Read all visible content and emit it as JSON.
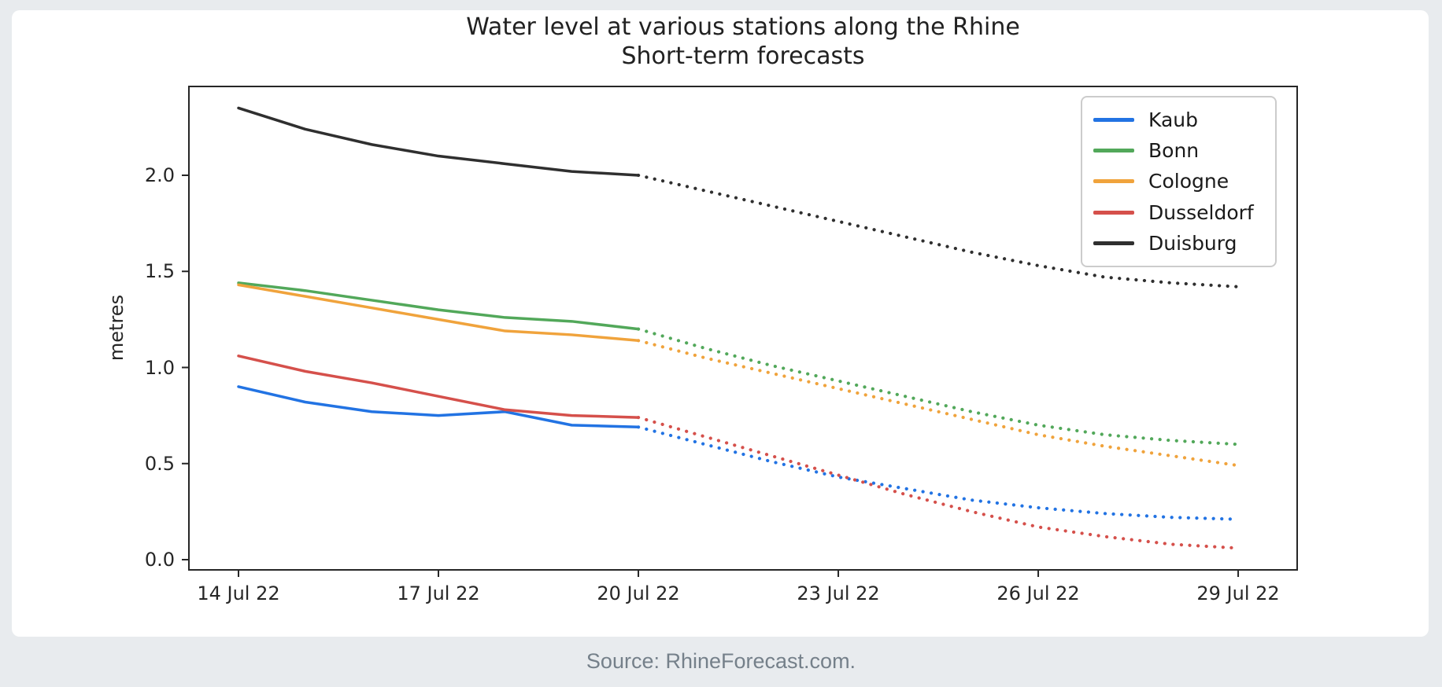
{
  "page": {
    "background": "#e8ebee",
    "card_background": "#ffffff"
  },
  "source_note": "Source: RhineForecast.com.",
  "chart_data": {
    "type": "line",
    "title": "Water level at various stations along the Rhine",
    "subtitle": "Short-term forecasts",
    "xlabel": "",
    "ylabel": "metres",
    "x_tick_labels": [
      "14 Jul 22",
      "17 Jul 22",
      "20 Jul 22",
      "23 Jul 22",
      "26 Jul 22",
      "29 Jul 22"
    ],
    "x_tick_days": [
      14,
      17,
      20,
      23,
      26,
      29
    ],
    "y_tick_labels": [
      "0.0",
      "0.5",
      "1.0",
      "1.5",
      "2.0"
    ],
    "y_ticks": [
      0,
      0.5,
      1,
      1.5,
      2
    ],
    "ylim": [
      -0.05,
      2.47
    ],
    "xlim_days": [
      13.25,
      29.9
    ],
    "grid": false,
    "legend_position": "upper right",
    "axis_color": "#262626",
    "observed_style": "solid",
    "forecast_style": "dotted",
    "days_observed": [
      14,
      15,
      16,
      17,
      18,
      19,
      20
    ],
    "days_forecast": [
      20,
      21,
      22,
      23,
      24,
      25,
      26,
      27,
      28,
      29
    ],
    "series": [
      {
        "name": "Kaub",
        "color": "#2273e3",
        "observed": [
          0.9,
          0.82,
          0.77,
          0.75,
          0.77,
          0.7,
          0.69
        ],
        "forecast": [
          0.69,
          0.6,
          0.51,
          0.43,
          0.37,
          0.31,
          0.27,
          0.24,
          0.22,
          0.21
        ]
      },
      {
        "name": "Bonn",
        "color": "#52a85a",
        "observed": [
          1.44,
          1.4,
          1.35,
          1.3,
          1.26,
          1.24,
          1.2
        ],
        "forecast": [
          1.2,
          1.1,
          1.01,
          0.93,
          0.85,
          0.77,
          0.7,
          0.65,
          0.62,
          0.6
        ]
      },
      {
        "name": "Cologne",
        "color": "#f0a33c",
        "observed": [
          1.43,
          1.37,
          1.31,
          1.25,
          1.19,
          1.17,
          1.14
        ],
        "forecast": [
          1.14,
          1.05,
          0.97,
          0.89,
          0.81,
          0.73,
          0.65,
          0.59,
          0.54,
          0.49
        ]
      },
      {
        "name": "Dusseldorf",
        "color": "#d5504b",
        "observed": [
          1.06,
          0.98,
          0.92,
          0.85,
          0.78,
          0.75,
          0.74
        ],
        "forecast": [
          0.74,
          0.64,
          0.54,
          0.44,
          0.34,
          0.25,
          0.17,
          0.12,
          0.08,
          0.06
        ]
      },
      {
        "name": "Duisburg",
        "color": "#2f2f2f",
        "observed": [
          2.35,
          2.24,
          2.16,
          2.1,
          2.06,
          2.02,
          2.0
        ],
        "forecast": [
          2.0,
          1.92,
          1.84,
          1.76,
          1.68,
          1.6,
          1.53,
          1.47,
          1.44,
          1.42
        ]
      }
    ]
  }
}
